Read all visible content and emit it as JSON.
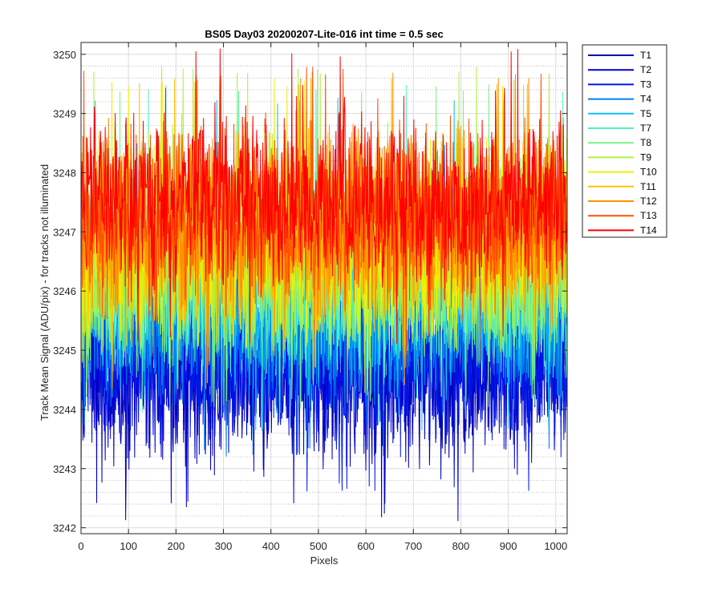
{
  "chart_data": {
    "type": "line",
    "title": "BS05 Day03 20200207-Lite-016 int time = 0.5 sec",
    "xlabel": "Pixels",
    "ylabel": "Track Mean Signal (ADU/pix) - for tracks not illuminated",
    "xlim": [
      0,
      1024
    ],
    "ylim": [
      3241.9,
      3250.2
    ],
    "x_ticks": [
      0,
      100,
      200,
      300,
      400,
      500,
      600,
      700,
      800,
      900,
      1000
    ],
    "y_ticks": [
      3242,
      3243,
      3244,
      3245,
      3246,
      3247,
      3248,
      3249,
      3250
    ],
    "y_minor_step": 0.2,
    "grid": true,
    "legend_position": "outside-right",
    "num_points_per_series": 1024,
    "series": [
      {
        "name": "T1",
        "color": "#0000b0",
        "mean": 3244.7,
        "min": 3242.1,
        "max": 3247.7
      },
      {
        "name": "T2",
        "color": "#0000cf",
        "mean": 3244.75,
        "min": 3242.3,
        "max": 3247.8
      },
      {
        "name": "T3",
        "color": "#0018ea",
        "mean": 3244.85,
        "min": 3242.6,
        "max": 3247.9
      },
      {
        "name": "T4",
        "color": "#0080f0",
        "mean": 3245.3,
        "min": 3243.2,
        "max": 3248.6
      },
      {
        "name": "T5",
        "color": "#10c0f0",
        "mean": 3245.7,
        "min": 3243.6,
        "max": 3249.3
      },
      {
        "name": "T7",
        "color": "#50f0c0",
        "mean": 3246.0,
        "min": 3243.8,
        "max": 3249.5
      },
      {
        "name": "T8",
        "color": "#80f080",
        "mean": 3246.2,
        "min": 3244.0,
        "max": 3249.5
      },
      {
        "name": "T9",
        "color": "#b0f040",
        "mean": 3246.4,
        "min": 3244.1,
        "max": 3249.8
      },
      {
        "name": "T10",
        "color": "#f0f000",
        "mean": 3246.7,
        "min": 3244.2,
        "max": 3249.6
      },
      {
        "name": "T11",
        "color": "#ffc000",
        "mean": 3246.9,
        "min": 3244.3,
        "max": 3249.6
      },
      {
        "name": "T12",
        "color": "#ff9000",
        "mean": 3247.1,
        "min": 3244.6,
        "max": 3249.7
      },
      {
        "name": "T13",
        "color": "#ff5000",
        "mean": 3247.3,
        "min": 3244.8,
        "max": 3249.8
      },
      {
        "name": "T14",
        "color": "#ff0000",
        "mean": 3247.5,
        "min": 3245.1,
        "max": 3250.1
      }
    ]
  }
}
